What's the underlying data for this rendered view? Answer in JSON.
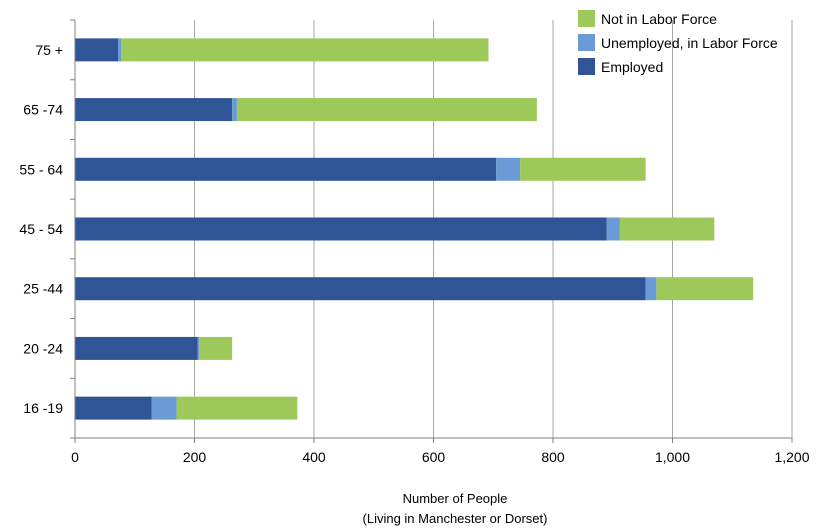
{
  "chart_data": {
    "type": "bar",
    "orientation": "horizontal",
    "stacked": true,
    "categories": [
      "75 +",
      "65 -74",
      "55 - 64",
      "45 - 54",
      "25 -44",
      "20 -24",
      "16 -19"
    ],
    "series": [
      {
        "name": "Employed",
        "color": "#2f5597",
        "values": [
          72,
          263,
          705,
          890,
          955,
          205,
          128
        ]
      },
      {
        "name": "Unemployed, in Labor Force",
        "color": "#6b9bd6",
        "values": [
          5,
          8,
          40,
          22,
          18,
          3,
          42
        ]
      },
      {
        "name": "Not in Labor Force",
        "color": "#9dc85a",
        "values": [
          615,
          502,
          210,
          158,
          162,
          55,
          202
        ]
      }
    ],
    "xlabel": "Number of People",
    "xlabel_sub": "(Living in Manchester or Dorset)",
    "ylabel": "",
    "xlim": [
      0,
      1200
    ],
    "xticks": [
      0,
      200,
      400,
      600,
      800,
      1000,
      1200
    ],
    "xtick_labels": [
      "0",
      "200",
      "400",
      "600",
      "800",
      "1,000",
      "1,200"
    ],
    "grid": "vertical",
    "legend_position": "top-right",
    "legend_order": [
      "Not in Labor Force",
      "Unemployed, in Labor Force",
      "Employed"
    ]
  }
}
